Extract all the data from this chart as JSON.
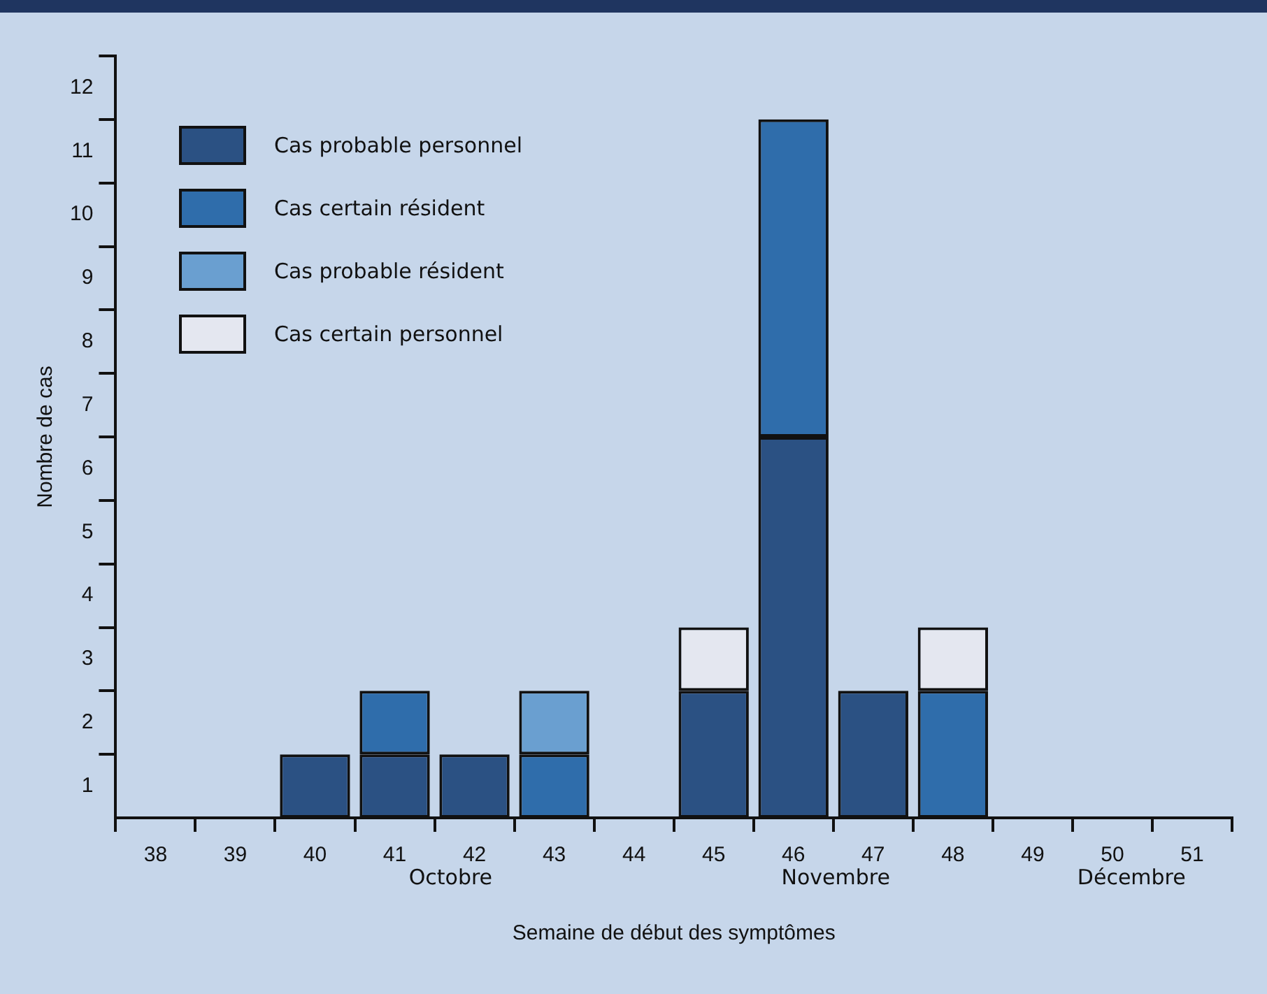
{
  "chart_data": {
    "type": "bar",
    "xlabel": "Semaine de début des symptômes",
    "ylabel": "Nombre de cas",
    "categories": [
      "38",
      "39",
      "40",
      "41",
      "42",
      "43",
      "44",
      "45",
      "46",
      "47",
      "48",
      "49",
      "50",
      "51"
    ],
    "stacked": true,
    "legend": "top left",
    "grid": false,
    "series": [
      {
        "name": "Cas probable personnel",
        "color": "#2b5183",
        "values": [
          0,
          0,
          1,
          1,
          1,
          0,
          0,
          2,
          6,
          2,
          0,
          0,
          0,
          0
        ]
      },
      {
        "name": "Cas certain résident",
        "color": "#2f6dab",
        "values": [
          0,
          0,
          0,
          1,
          0,
          1,
          0,
          0,
          5,
          0,
          2,
          0,
          0,
          0
        ]
      },
      {
        "name": "Cas probable résident",
        "color": "#6a9fd0",
        "values": [
          0,
          0,
          0,
          0,
          0,
          1,
          0,
          0,
          0,
          0,
          0,
          0,
          0,
          0
        ]
      },
      {
        "name": "Cas certain personnel",
        "color": "#e4e7f0",
        "values": [
          0,
          0,
          0,
          0,
          0,
          0,
          0,
          1,
          0,
          0,
          1,
          0,
          0,
          0
        ]
      }
    ],
    "ylim": [
      0,
      12
    ],
    "yticks": [
      {
        "value": 0.5,
        "label": "1"
      },
      {
        "value": 1,
        "label": null
      },
      {
        "value": 1.5,
        "label": "2"
      },
      {
        "value": 2,
        "label": null
      },
      {
        "value": 2.5,
        "label": "3"
      },
      {
        "value": 3,
        "label": null
      },
      {
        "value": 3.5,
        "label": "4"
      },
      {
        "value": 4,
        "label": null
      },
      {
        "value": 4.5,
        "label": "5"
      },
      {
        "value": 5,
        "label": null
      },
      {
        "value": 5.5,
        "label": "6"
      },
      {
        "value": 6,
        "label": null
      },
      {
        "value": 6.5,
        "label": "7"
      },
      {
        "value": 7,
        "label": null
      },
      {
        "value": 7.5,
        "label": "8"
      },
      {
        "value": 8,
        "label": null
      },
      {
        "value": 8.5,
        "label": "9"
      },
      {
        "value": 9,
        "label": null
      },
      {
        "value": 9.5,
        "label": "10"
      },
      {
        "value": 10,
        "label": null
      },
      {
        "value": 10.5,
        "label": "11"
      },
      {
        "value": 11,
        "label": null
      },
      {
        "value": 11.5,
        "label": "12"
      },
      {
        "value": 12,
        "label": null
      }
    ],
    "annotations": [
      "Octobre",
      "Novembre",
      "Décembre"
    ]
  }
}
